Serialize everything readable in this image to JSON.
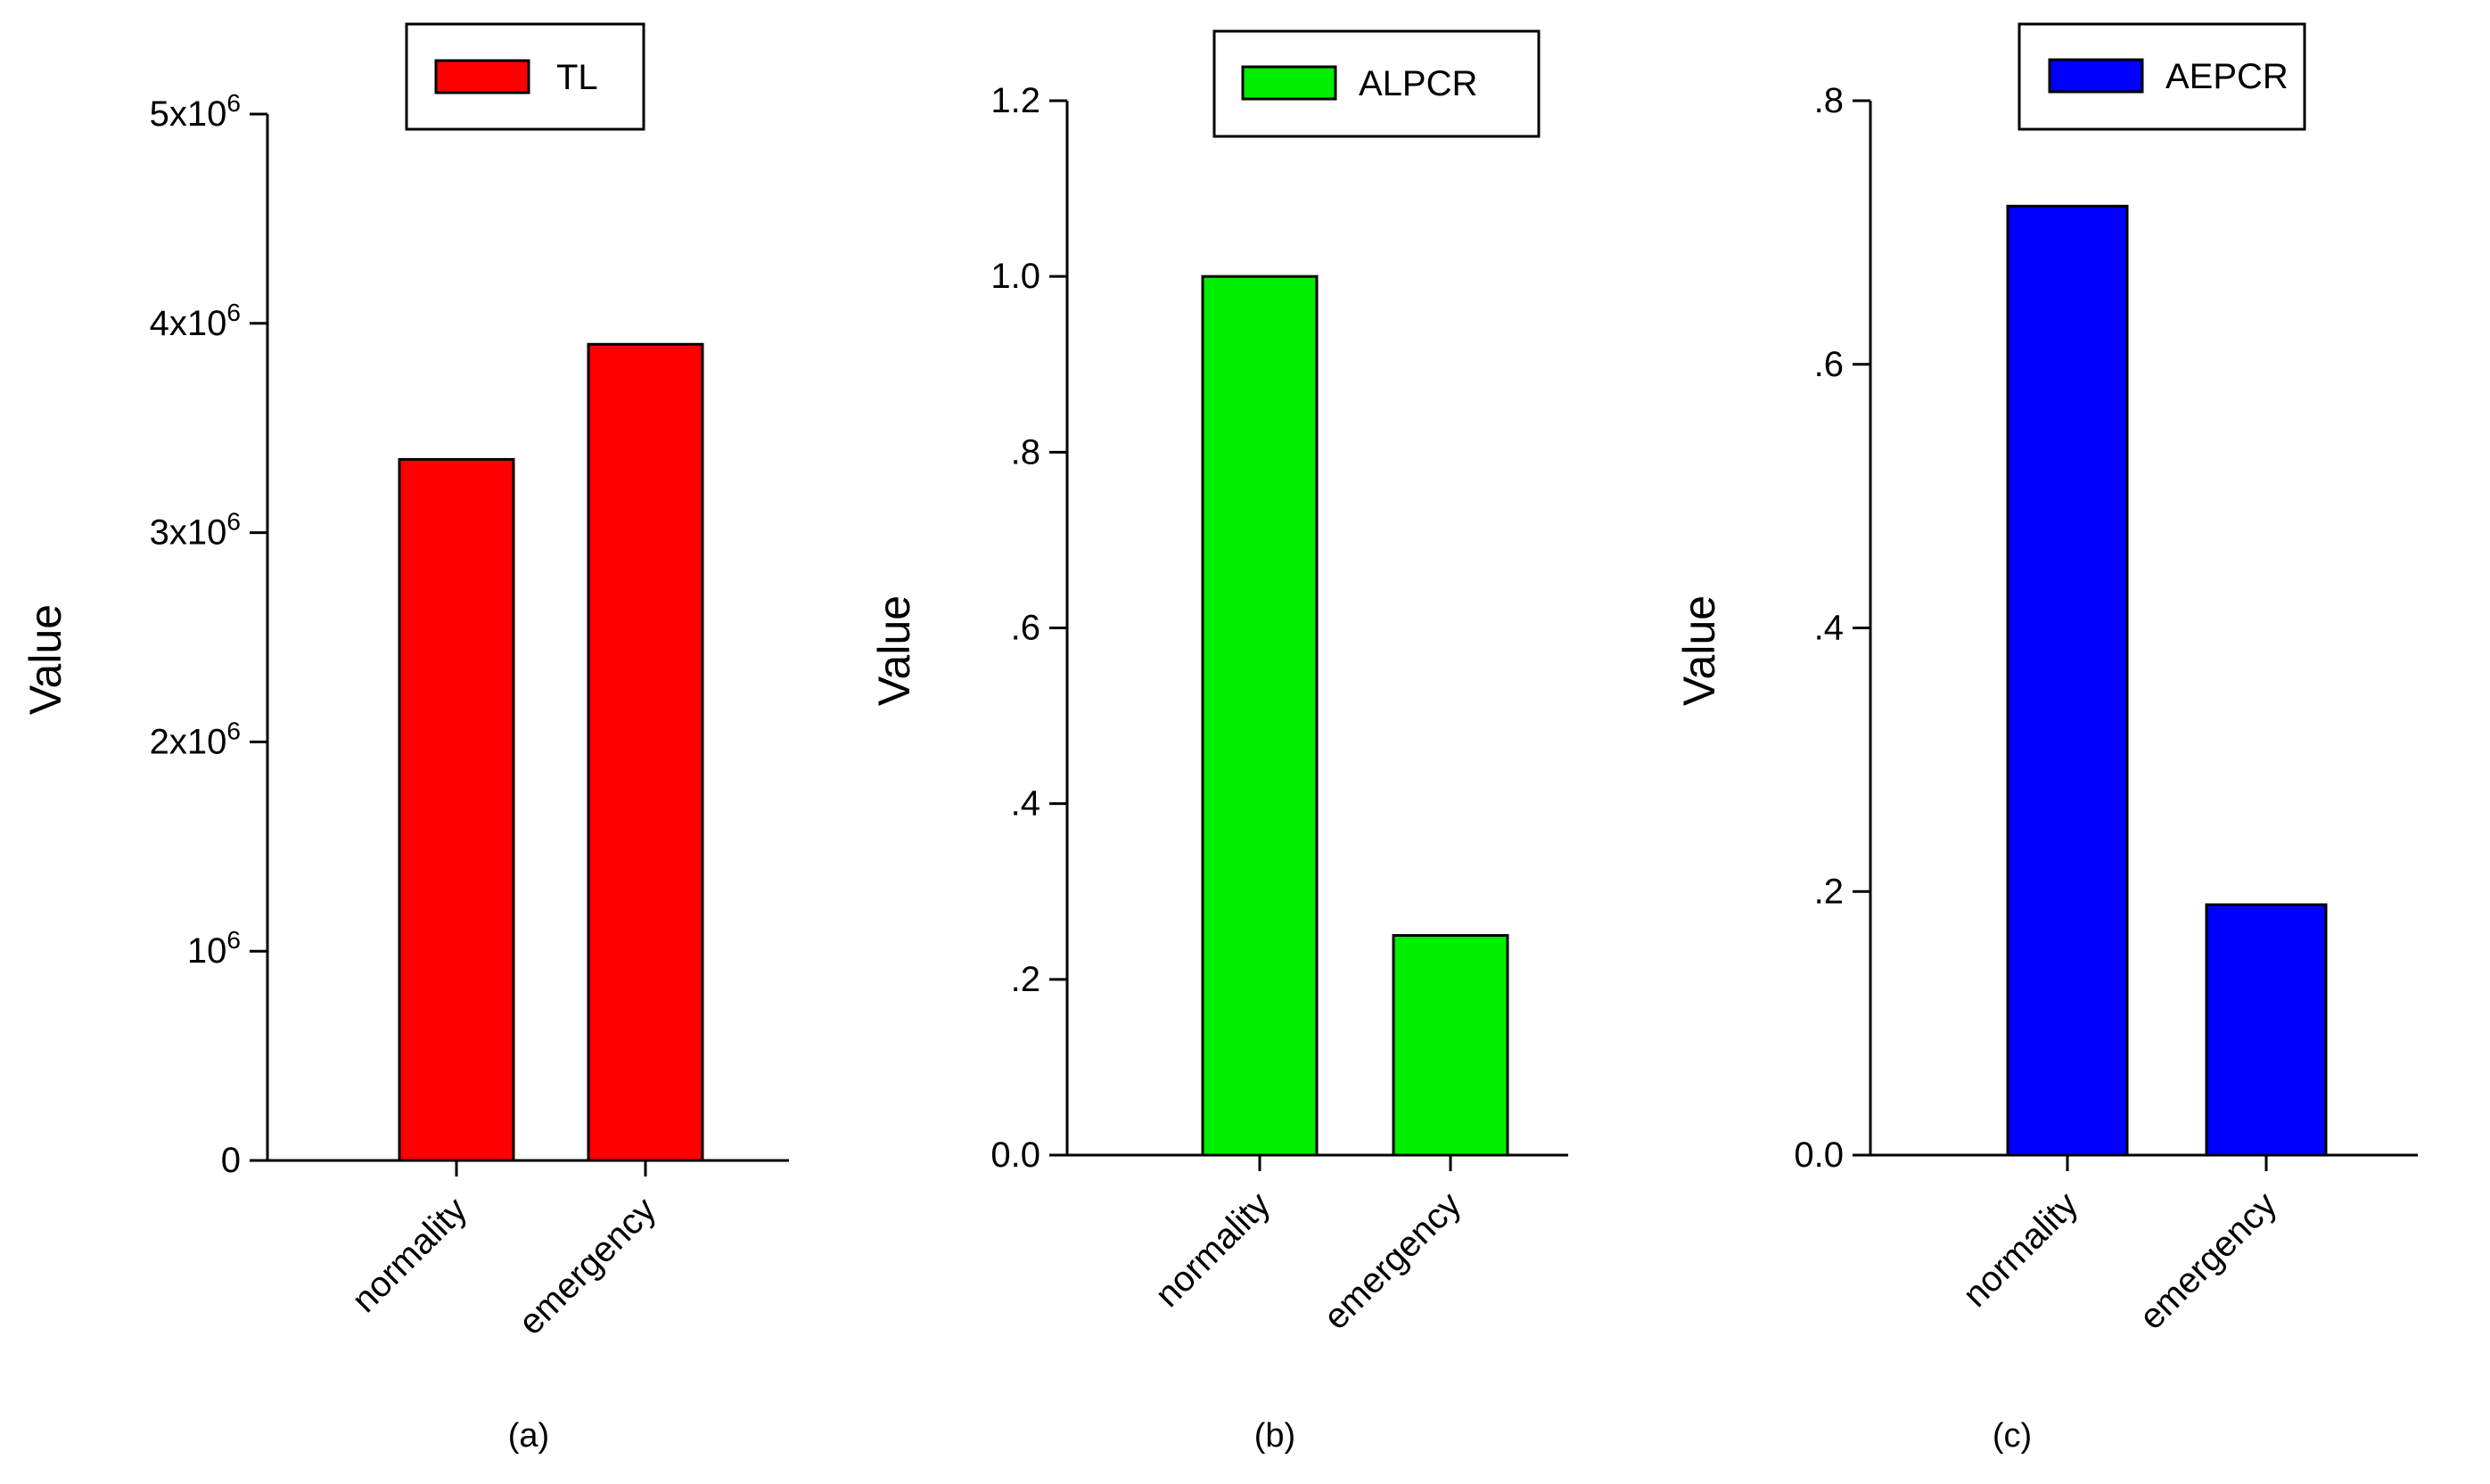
{
  "chart_data": [
    {
      "type": "bar",
      "panel_label": "(a)",
      "ylabel": "Value",
      "categories": [
        "normality",
        "emergency"
      ],
      "series": [
        {
          "name": "TL",
          "color": "#ff0000",
          "values": [
            3350000,
            3900000
          ]
        }
      ],
      "ylim": [
        0,
        5000000
      ],
      "yticks": [
        {
          "value": 0,
          "base": "0",
          "sup": ""
        },
        {
          "value": 1000000,
          "base": "10",
          "sup": "6"
        },
        {
          "value": 2000000,
          "base": "2x10",
          "sup": "6"
        },
        {
          "value": 3000000,
          "base": "3x10",
          "sup": "6"
        },
        {
          "value": 4000000,
          "base": "4x10",
          "sup": "6"
        },
        {
          "value": 5000000,
          "base": "5x10",
          "sup": "6"
        }
      ],
      "legend": "top"
    },
    {
      "type": "bar",
      "panel_label": "(b)",
      "ylabel": "Value",
      "categories": [
        "normality",
        "emergency"
      ],
      "series": [
        {
          "name": "ALPCR",
          "color": "#00ee00",
          "values": [
            1.0,
            0.25
          ]
        }
      ],
      "ylim": [
        0,
        1.2
      ],
      "yticks": [
        {
          "value": 0,
          "base": "0.0",
          "sup": ""
        },
        {
          "value": 0.2,
          "base": ".2",
          "sup": ""
        },
        {
          "value": 0.4,
          "base": ".4",
          "sup": ""
        },
        {
          "value": 0.6,
          "base": ".6",
          "sup": ""
        },
        {
          "value": 0.8,
          "base": ".8",
          "sup": ""
        },
        {
          "value": 1.0,
          "base": "1.0",
          "sup": ""
        },
        {
          "value": 1.2,
          "base": "1.2",
          "sup": ""
        }
      ],
      "legend": "top"
    },
    {
      "type": "bar",
      "panel_label": "(c)",
      "ylabel": "Value",
      "categories": [
        "normality",
        "emergency"
      ],
      "series": [
        {
          "name": "AEPCR",
          "color": "#0000ff",
          "values": [
            0.72,
            0.19
          ]
        }
      ],
      "ylim": [
        0,
        0.8
      ],
      "yticks": [
        {
          "value": 0,
          "base": "0.0",
          "sup": ""
        },
        {
          "value": 0.2,
          "base": ".2",
          "sup": ""
        },
        {
          "value": 0.4,
          "base": ".4",
          "sup": ""
        },
        {
          "value": 0.6,
          "base": ".6",
          "sup": ""
        },
        {
          "value": 0.8,
          "base": ".8",
          "sup": ""
        }
      ],
      "legend": "top"
    }
  ]
}
